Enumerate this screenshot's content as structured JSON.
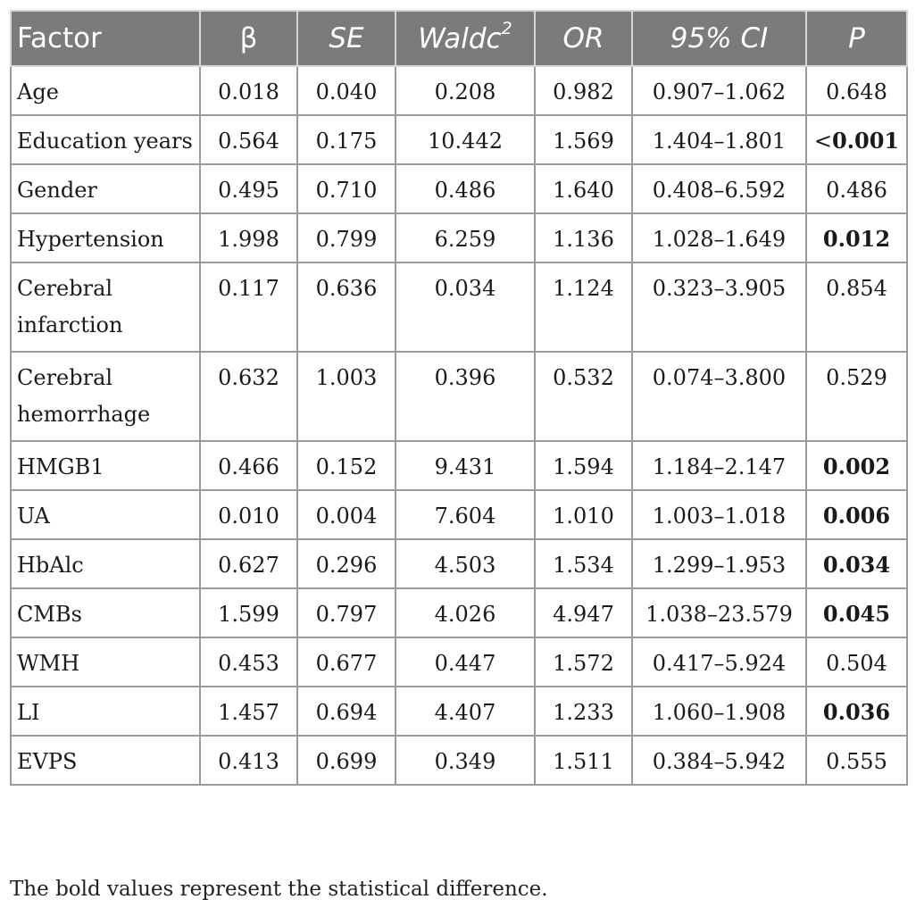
{
  "table": {
    "headers": [
      "Factor",
      "β",
      "SE",
      "Waldc",
      "OR",
      "95% CI",
      "P"
    ],
    "wald_superscript": "2",
    "rows": [
      {
        "factor": "Age",
        "beta": "0.018",
        "se": "0.040",
        "wald": "0.208",
        "or": "0.982",
        "ci": "0.907–1.062",
        "p": "0.648",
        "p_prefix": "",
        "p_bold": false,
        "lines": 1
      },
      {
        "factor": "Education years",
        "beta": "0.564",
        "se": "0.175",
        "wald": "10.442",
        "or": "1.569",
        "ci": "1.404–1.801",
        "p": "0.001",
        "p_prefix": "<",
        "p_bold": true,
        "lines": 1
      },
      {
        "factor": "Gender",
        "beta": "0.495",
        "se": "0.710",
        "wald": "0.486",
        "or": "1.640",
        "ci": "0.408–6.592",
        "p": "0.486",
        "p_prefix": "",
        "p_bold": false,
        "lines": 1
      },
      {
        "factor": "Hypertension",
        "beta": "1.998",
        "se": "0.799",
        "wald": "6.259",
        "or": "1.136",
        "ci": "1.028–1.649",
        "p": "0.012",
        "p_prefix": "",
        "p_bold": true,
        "lines": 1
      },
      {
        "factor": "Cerebral infarction",
        "beta": "0.117",
        "se": "0.636",
        "wald": "0.034",
        "or": "1.124",
        "ci": "0.323–3.905",
        "p": "0.854",
        "p_prefix": "",
        "p_bold": false,
        "lines": 2
      },
      {
        "factor": "Cerebral hemorrhage",
        "beta": "0.632",
        "se": "1.003",
        "wald": "0.396",
        "or": "0.532",
        "ci": "0.074–3.800",
        "p": "0.529",
        "p_prefix": "",
        "p_bold": false,
        "lines": 2
      },
      {
        "factor": "HMGB1",
        "beta": "0.466",
        "se": "0.152",
        "wald": "9.431",
        "or": "1.594",
        "ci": "1.184–2.147",
        "p": "0.002",
        "p_prefix": "",
        "p_bold": true,
        "lines": 1
      },
      {
        "factor": "UA",
        "beta": "0.010",
        "se": "0.004",
        "wald": "7.604",
        "or": "1.010",
        "ci": "1.003–1.018",
        "p": "0.006",
        "p_prefix": "",
        "p_bold": true,
        "lines": 1
      },
      {
        "factor": "HbAlc",
        "beta": "0.627",
        "se": "0.296",
        "wald": "4.503",
        "or": "1.534",
        "ci": "1.299–1.953",
        "p": "0.034",
        "p_prefix": "",
        "p_bold": true,
        "lines": 1
      },
      {
        "factor": "CMBs",
        "beta": "1.599",
        "se": "0.797",
        "wald": "4.026",
        "or": "4.947",
        "ci": "1.038–23.579",
        "p": "0.045",
        "p_prefix": "",
        "p_bold": true,
        "lines": 1
      },
      {
        "factor": "WMH",
        "beta": "0.453",
        "se": "0.677",
        "wald": "0.447",
        "or": "1.572",
        "ci": "0.417–5.924",
        "p": "0.504",
        "p_prefix": "",
        "p_bold": false,
        "lines": 1
      },
      {
        "factor": "LI",
        "beta": "1.457",
        "se": "0.694",
        "wald": "4.407",
        "or": "1.233",
        "ci": "1.060–1.908",
        "p": "0.036",
        "p_prefix": "",
        "p_bold": true,
        "lines": 1
      },
      {
        "factor": "EVPS",
        "beta": "0.413",
        "se": "0.699",
        "wald": "0.349",
        "or": "1.511",
        "ci": "0.384–5.942",
        "p": "0.555",
        "p_prefix": "",
        "p_bold": false,
        "lines": 1
      }
    ]
  },
  "footnote": "The bold values represent the statistical difference.",
  "colors": {
    "header_bg": "#7b7b7b",
    "header_text": "#ffffff",
    "border": "#9a9a9a"
  }
}
